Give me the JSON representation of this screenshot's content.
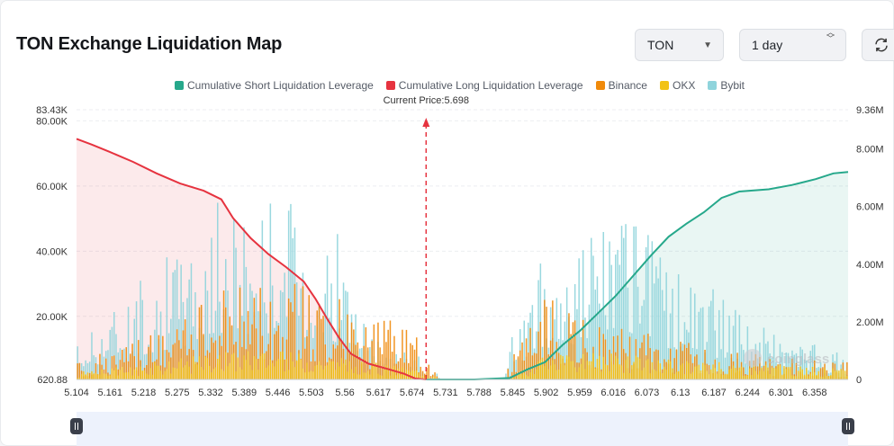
{
  "header": {
    "title": "TON Exchange Liquidation Map",
    "coin_select": "TON",
    "period_select": "1 day"
  },
  "colors": {
    "short": "#26a88b",
    "long": "#e6333f",
    "binance": "#f08a0b",
    "okx": "#f2c215",
    "bybit": "#8fd4dc"
  },
  "legend": [
    {
      "label": "Cumulative Short Liquidation Leverage",
      "color": "#26a88b"
    },
    {
      "label": "Cumulative Long Liquidation Leverage",
      "color": "#e6333f"
    },
    {
      "label": "Binance",
      "color": "#f08a0b"
    },
    {
      "label": "OKX",
      "color": "#f2c215"
    },
    {
      "label": "Bybit",
      "color": "#8fd4dc"
    }
  ],
  "watermark": "coinglass",
  "chart_data": {
    "type": "bar",
    "current_price_label": "Current Price:5.698",
    "current_price": 5.698,
    "x_range": [
      5.104,
      6.415
    ],
    "x_ticks": [
      "5.104",
      "5.161",
      "5.218",
      "5.275",
      "5.332",
      "5.389",
      "5.446",
      "5.503",
      "5.56",
      "5.617",
      "5.674",
      "5.731",
      "5.788",
      "5.845",
      "5.902",
      "5.959",
      "6.016",
      "6.073",
      "6.13",
      "6.187",
      "6.244",
      "6.301",
      "6.358"
    ],
    "y_left": {
      "ticks": [
        "83.43K",
        "80.00K",
        "60.00K",
        "40.00K",
        "20.00K",
        "620.88"
      ],
      "range": [
        620.88,
        83430
      ]
    },
    "y_right": {
      "ticks": [
        "9.36M",
        "8.00M",
        "6.00M",
        "4.00M",
        "2.00M",
        "0"
      ],
      "range": [
        0,
        9360000
      ]
    },
    "cumulative_long": {
      "name": "Cumulative Long Liquidation Leverage",
      "points": [
        [
          5.104,
          8350000
        ],
        [
          5.13,
          8150000
        ],
        [
          5.16,
          7900000
        ],
        [
          5.2,
          7550000
        ],
        [
          5.24,
          7150000
        ],
        [
          5.28,
          6800000
        ],
        [
          5.32,
          6550000
        ],
        [
          5.35,
          6250000
        ],
        [
          5.37,
          5600000
        ],
        [
          5.4,
          4900000
        ],
        [
          5.43,
          4350000
        ],
        [
          5.46,
          3900000
        ],
        [
          5.49,
          3400000
        ],
        [
          5.51,
          2800000
        ],
        [
          5.53,
          2100000
        ],
        [
          5.55,
          1450000
        ],
        [
          5.57,
          900000
        ],
        [
          5.6,
          550000
        ],
        [
          5.63,
          380000
        ],
        [
          5.66,
          200000
        ],
        [
          5.68,
          30000
        ],
        [
          5.698,
          0
        ]
      ]
    },
    "cumulative_short": {
      "name": "Cumulative Short Liquidation Leverage",
      "points": [
        [
          5.698,
          0
        ],
        [
          5.78,
          0
        ],
        [
          5.84,
          50000
        ],
        [
          5.87,
          350000
        ],
        [
          5.9,
          600000
        ],
        [
          5.93,
          1200000
        ],
        [
          5.96,
          1700000
        ],
        [
          5.99,
          2300000
        ],
        [
          6.02,
          2900000
        ],
        [
          6.05,
          3600000
        ],
        [
          6.08,
          4300000
        ],
        [
          6.11,
          4950000
        ],
        [
          6.14,
          5400000
        ],
        [
          6.17,
          5800000
        ],
        [
          6.2,
          6300000
        ],
        [
          6.23,
          6520000
        ],
        [
          6.28,
          6600000
        ],
        [
          6.32,
          6750000
        ],
        [
          6.36,
          6950000
        ],
        [
          6.39,
          7150000
        ],
        [
          6.415,
          7200000
        ]
      ]
    },
    "exchange_bars_envelope": {
      "bybit": [
        [
          5.104,
          12000
        ],
        [
          5.15,
          22000
        ],
        [
          5.2,
          30000
        ],
        [
          5.25,
          38000
        ],
        [
          5.3,
          45000
        ],
        [
          5.35,
          58000
        ],
        [
          5.4,
          55000
        ],
        [
          5.45,
          62000
        ],
        [
          5.5,
          50000
        ],
        [
          5.55,
          48000
        ],
        [
          5.6,
          14000
        ],
        [
          5.65,
          10000
        ],
        [
          5.69,
          8000
        ],
        [
          5.73,
          0
        ],
        [
          5.83,
          0
        ],
        [
          5.85,
          20000
        ],
        [
          5.9,
          40000
        ],
        [
          5.95,
          46000
        ],
        [
          6.0,
          54000
        ],
        [
          6.05,
          50000
        ],
        [
          6.1,
          42000
        ],
        [
          6.15,
          34000
        ],
        [
          6.2,
          28000
        ],
        [
          6.25,
          20000
        ],
        [
          6.3,
          16000
        ],
        [
          6.35,
          12000
        ],
        [
          6.415,
          8000
        ]
      ],
      "binance": [
        [
          5.104,
          6000
        ],
        [
          5.2,
          12000
        ],
        [
          5.3,
          22000
        ],
        [
          5.4,
          34000
        ],
        [
          5.5,
          30000
        ],
        [
          5.55,
          26000
        ],
        [
          5.6,
          18000
        ],
        [
          5.65,
          20000
        ],
        [
          5.69,
          12000
        ],
        [
          5.73,
          0
        ],
        [
          5.83,
          0
        ],
        [
          5.85,
          12000
        ],
        [
          5.9,
          26000
        ],
        [
          5.95,
          22000
        ],
        [
          6.0,
          18000
        ],
        [
          6.1,
          14000
        ],
        [
          6.2,
          10000
        ],
        [
          6.3,
          8000
        ],
        [
          6.415,
          6000
        ]
      ],
      "okx": [
        [
          5.104,
          3000
        ],
        [
          5.2,
          5000
        ],
        [
          5.3,
          8000
        ],
        [
          5.4,
          10000
        ],
        [
          5.5,
          9000
        ],
        [
          5.6,
          6000
        ],
        [
          5.69,
          4000
        ],
        [
          5.73,
          0
        ],
        [
          5.83,
          0
        ],
        [
          5.9,
          8000
        ],
        [
          6.0,
          9000
        ],
        [
          6.1,
          7000
        ],
        [
          6.2,
          6000
        ],
        [
          6.3,
          5000
        ],
        [
          6.415,
          4000
        ]
      ]
    }
  }
}
